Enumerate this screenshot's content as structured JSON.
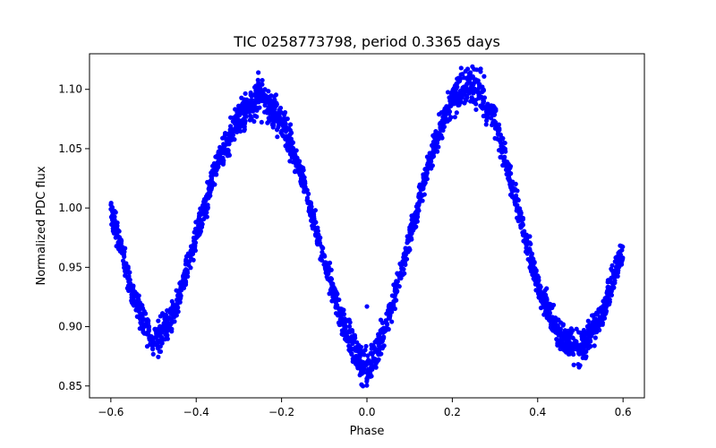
{
  "chart_data": {
    "type": "scatter",
    "title": "TIC 0258773798, period 0.3365 days",
    "xlabel": "Phase",
    "ylabel": "Normalized PDC flux",
    "xlim": [
      -0.65,
      0.65
    ],
    "ylim": [
      0.84,
      1.13
    ],
    "xticks": [
      -0.6,
      -0.4,
      -0.2,
      0.0,
      0.2,
      0.4,
      0.6
    ],
    "xtick_labels": [
      "−0.6",
      "−0.4",
      "−0.2",
      "0.0",
      "0.2",
      "0.4",
      "0.6"
    ],
    "yticks": [
      0.85,
      0.9,
      0.95,
      1.0,
      1.05,
      1.1
    ],
    "ytick_labels": [
      "0.85",
      "0.90",
      "0.95",
      "1.00",
      "1.05",
      "1.10"
    ],
    "grid": false,
    "series": [
      {
        "name": "flux",
        "color": "#0000ff",
        "x": [
          -0.6,
          -0.55,
          -0.5,
          -0.45,
          -0.4,
          -0.35,
          -0.3,
          -0.25,
          -0.2,
          -0.15,
          -0.1,
          -0.05,
          0.0,
          0.05,
          0.1,
          0.15,
          0.2,
          0.25,
          0.3,
          0.35,
          0.4,
          0.45,
          0.5,
          0.55,
          0.6
        ],
        "y_center": [
          1.0,
          0.928,
          0.885,
          0.912,
          0.975,
          1.038,
          1.077,
          1.093,
          1.075,
          1.025,
          0.955,
          0.895,
          0.86,
          0.905,
          0.975,
          1.045,
          1.092,
          1.105,
          1.075,
          1.005,
          0.935,
          0.893,
          0.882,
          0.91,
          0.965
        ],
        "y_spread": [
          0.012,
          0.012,
          0.016,
          0.014,
          0.012,
          0.012,
          0.013,
          0.017,
          0.014,
          0.012,
          0.012,
          0.014,
          0.017,
          0.013,
          0.012,
          0.012,
          0.014,
          0.018,
          0.014,
          0.012,
          0.012,
          0.014,
          0.016,
          0.013,
          0.014
        ]
      }
    ],
    "outliers": [
      {
        "x": 0.0,
        "y": 0.917
      },
      {
        "x": -0.21,
        "y": 1.06
      },
      {
        "x": -0.14,
        "y": 1.015
      }
    ]
  }
}
